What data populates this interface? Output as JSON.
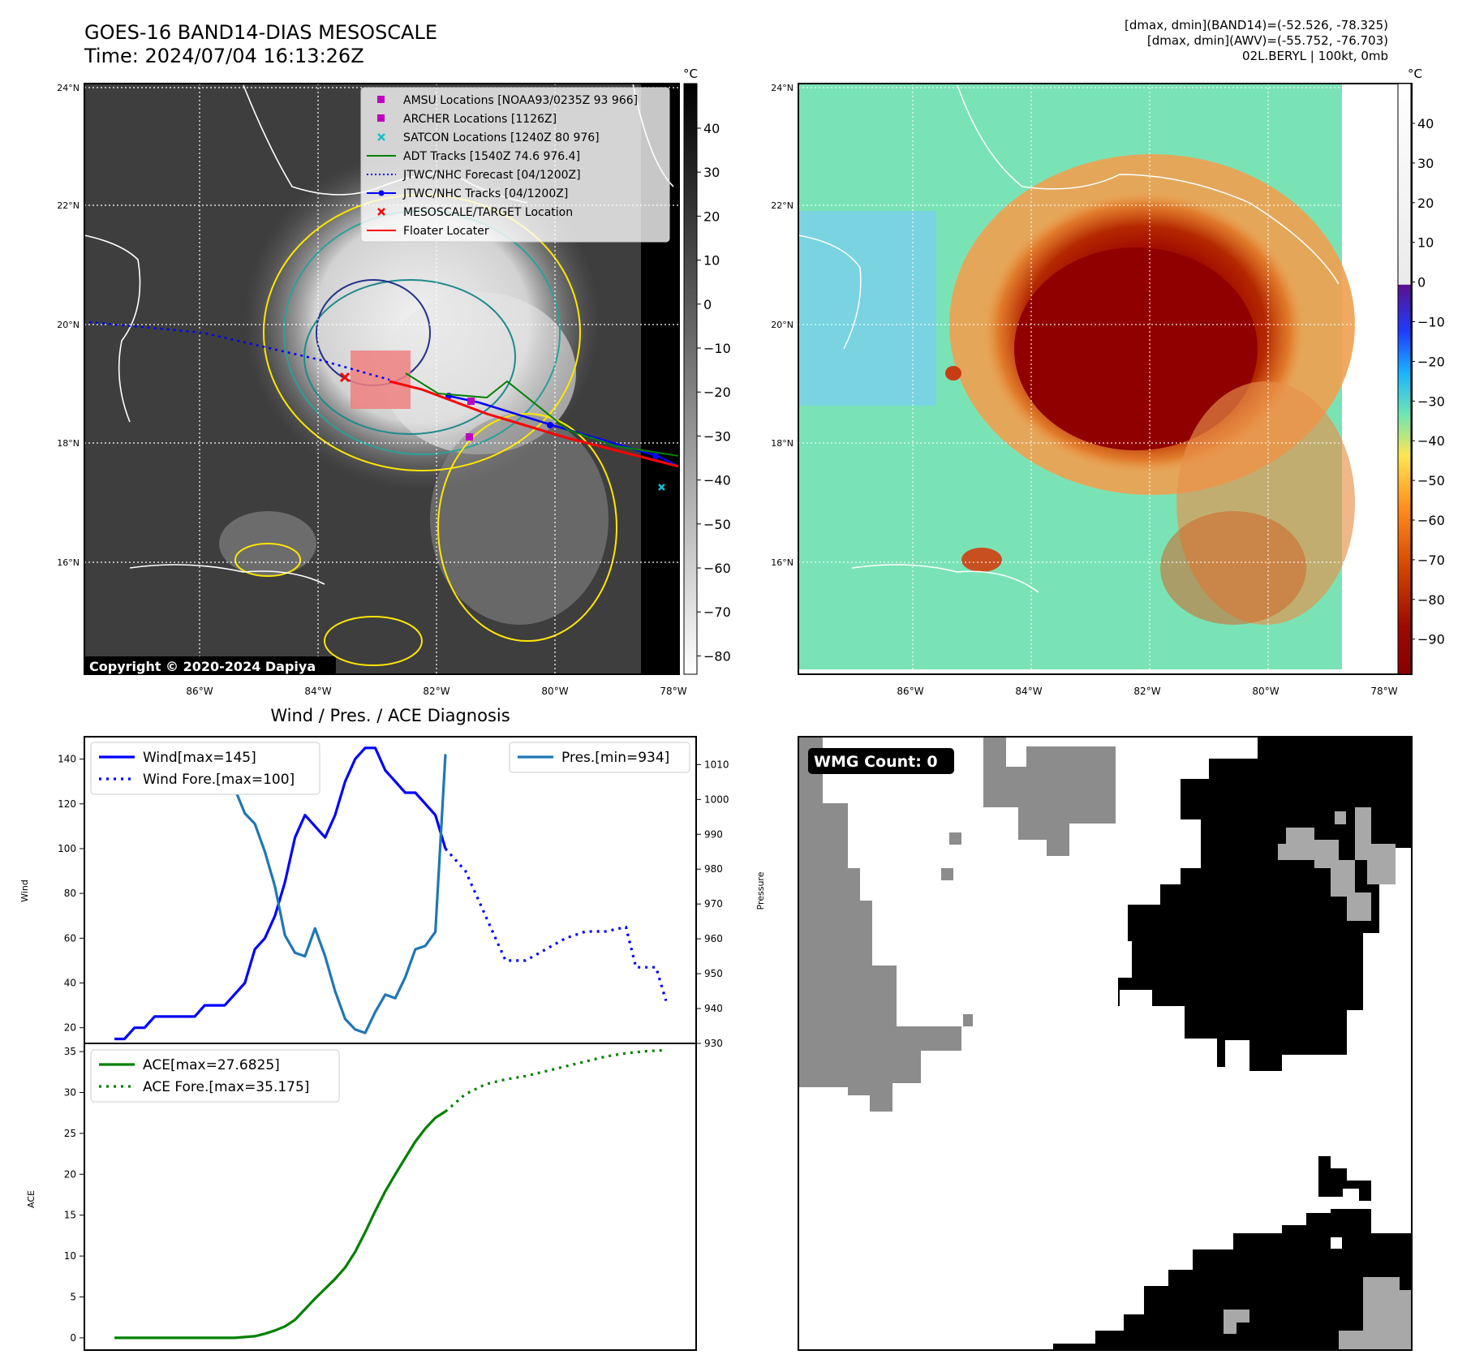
{
  "header": {
    "title_line1": "GOES-16 BAND14-DIAS MESOSCALE",
    "title_line2": "Time: 2024/07/04 16:13:26Z",
    "info_line1": "[dmax, dmin](BAND14)=(-52.526, -78.325)",
    "info_line2": "[dmax, dmin](AWV)=(-55.752, -76.703)",
    "info_line3": "02L.BERYL | 100kt, 0mb"
  },
  "maps": {
    "lat_labels": [
      "24°N",
      "22°N",
      "20°N",
      "18°N",
      "16°N"
    ],
    "lon_labels": [
      "86°W",
      "84°W",
      "82°W",
      "80°W",
      "78°W"
    ],
    "copyright": "Copyright © 2020-2024 Dapiya",
    "colorbar_unit": "°C",
    "ir_colorbar_ticks": [
      "40",
      "30",
      "20",
      "10",
      "0",
      "−10",
      "−20",
      "−30",
      "−40",
      "−50",
      "−60",
      "−70",
      "−80"
    ],
    "sst_colorbar_ticks": [
      "40",
      "30",
      "20",
      "10",
      "0",
      "−10",
      "−20",
      "−30",
      "−40",
      "−50",
      "−60",
      "−70",
      "−80",
      "−90"
    ],
    "legend": [
      {
        "label": "AMSU Locations [NOAA93/0235Z 93 966]",
        "color": "#c000c0",
        "marker": "square"
      },
      {
        "label": "ARCHER Locations [1126Z]",
        "color": "#c000c0",
        "marker": "square"
      },
      {
        "label": "SATCON Locations [1240Z 80 976]",
        "color": "#17becf",
        "marker": "x"
      },
      {
        "label": "ADT Tracks [1540Z 74.6 976.4]",
        "color": "#008000",
        "marker": "line"
      },
      {
        "label": "JTWC/NHC Forecast [04/1200Z]",
        "color": "#0000ff",
        "marker": "dotted"
      },
      {
        "label": "JTWC/NHC Tracks [04/1200Z]",
        "color": "#0000ff",
        "marker": "line-dot"
      },
      {
        "label": "MESOSCALE/TARGET Location",
        "color": "#ff0000",
        "marker": "x"
      },
      {
        "label": "Floater Locater",
        "color": "#ff0000",
        "marker": "line"
      }
    ]
  },
  "chart_data": [
    {
      "type": "line",
      "title": "Wind / Pres. / ACE Diagnosis",
      "ylabel": "Wind",
      "y2label": "Pressure",
      "ylim": [
        13,
        150
      ],
      "y2lim": [
        930,
        1018
      ],
      "yticks": [
        20,
        40,
        60,
        80,
        100,
        120,
        140
      ],
      "y2ticks": [
        930,
        940,
        950,
        960,
        970,
        980,
        990,
        1000,
        1010
      ],
      "series": [
        {
          "name": "Wind[max=145]",
          "color": "#0000ff",
          "style": "solid",
          "axis": "left",
          "x": [
            0,
            1,
            2,
            3,
            4,
            5,
            6,
            7,
            8,
            9,
            10,
            11,
            12,
            13,
            14,
            15,
            16,
            17,
            18,
            19,
            20,
            21,
            22,
            23,
            24,
            25,
            26,
            27,
            28,
            29,
            30,
            31,
            32,
            33
          ],
          "values": [
            15,
            15,
            20,
            20,
            25,
            25,
            25,
            25,
            25,
            30,
            30,
            30,
            35,
            40,
            55,
            60,
            70,
            85,
            105,
            115,
            110,
            105,
            115,
            130,
            140,
            145,
            145,
            135,
            130,
            125,
            125,
            120,
            115,
            100
          ]
        },
        {
          "name": "Wind Fore.[max=100]",
          "color": "#0000ff",
          "style": "dotted",
          "axis": "left",
          "x": [
            33,
            35,
            37,
            39,
            41,
            43,
            45,
            47,
            49,
            51,
            52,
            53,
            54,
            55
          ],
          "values": [
            100,
            90,
            70,
            50,
            50,
            55,
            60,
            63,
            63,
            65,
            47,
            47,
            47,
            32
          ]
        },
        {
          "name": "Pres.[min=934]",
          "color": "#1f77b4",
          "style": "solid",
          "axis": "right",
          "x": [
            0,
            1,
            2,
            3,
            4,
            5,
            6,
            7,
            8,
            9,
            10,
            11,
            12,
            13,
            14,
            15,
            16,
            17,
            18,
            19,
            20,
            21,
            22,
            23,
            24,
            25,
            26,
            27,
            28,
            29,
            30,
            31,
            32,
            33
          ],
          "values": [
            1013,
            1013,
            1013,
            1012,
            1012,
            1011,
            1009,
            1009,
            1007,
            1007,
            1006,
            1006,
            1003,
            996,
            993,
            985,
            975,
            961,
            956,
            955,
            963,
            955,
            945,
            937,
            934,
            933,
            939,
            944,
            943,
            949,
            957,
            958,
            962,
            1013
          ]
        }
      ]
    },
    {
      "type": "line",
      "ylabel": "ACE",
      "ylim": [
        -1.5,
        36
      ],
      "yticks": [
        0,
        5,
        10,
        15,
        20,
        25,
        30,
        35
      ],
      "series": [
        {
          "name": "ACE[max=27.6825]",
          "color": "#008000",
          "style": "solid",
          "x": [
            0,
            1,
            2,
            3,
            4,
            5,
            6,
            7,
            8,
            9,
            10,
            11,
            12,
            13,
            14,
            15,
            16,
            17,
            18,
            19,
            20,
            21,
            22,
            23,
            24,
            25,
            26,
            27,
            28,
            29,
            30,
            31,
            32,
            33
          ],
          "values": [
            0,
            0,
            0,
            0,
            0,
            0,
            0,
            0,
            0,
            0,
            0,
            0,
            0,
            0.1,
            0.2,
            0.5,
            0.9,
            1.4,
            2.2,
            3.5,
            4.8,
            6,
            7.2,
            8.6,
            10.5,
            12.9,
            15.5,
            17.9,
            20,
            22,
            24,
            25.6,
            26.9,
            27.68
          ]
        },
        {
          "name": "ACE Fore.[max=35.175]",
          "color": "#008000",
          "style": "dotted",
          "x": [
            33,
            35,
            37,
            39,
            41,
            43,
            45,
            47,
            49,
            51,
            53,
            55
          ],
          "values": [
            27.68,
            29.8,
            31,
            31.6,
            32,
            32.6,
            33.2,
            33.8,
            34.4,
            34.8,
            35.05,
            35.175
          ]
        }
      ]
    }
  ],
  "wmg_panel": {
    "label": "WMG Count: 0"
  }
}
